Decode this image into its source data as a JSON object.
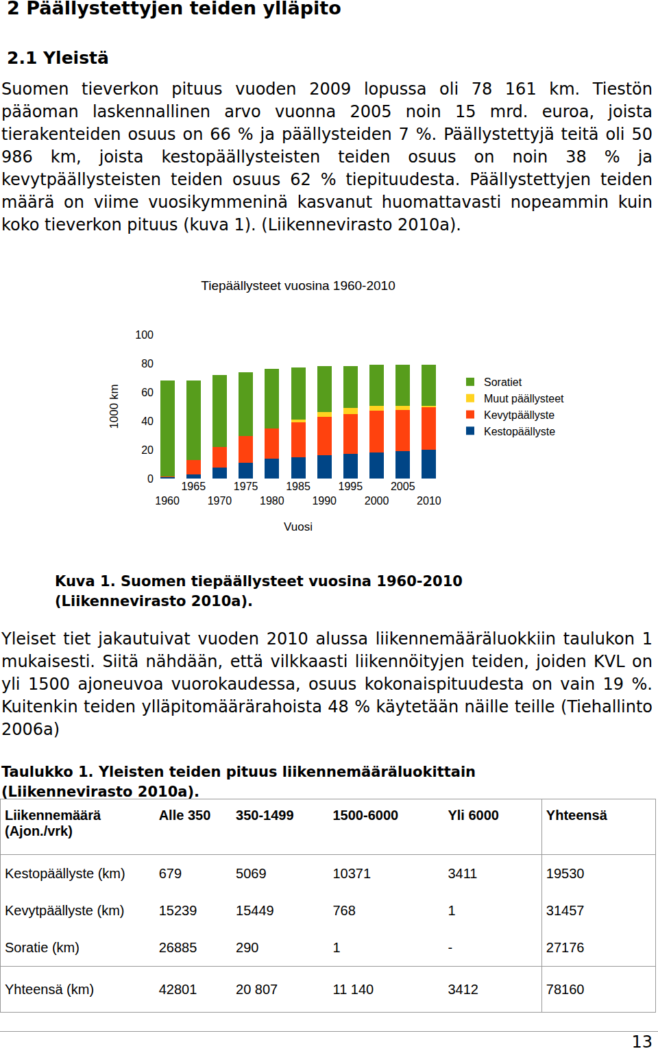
{
  "heading": "2 Päällystettyjen teiden ylläpito",
  "subheading": "2.1 Yleistä",
  "paragraph_1": "Suomen tieverkon pituus vuoden 2009 lopussa oli 78 161 km. Tiestön pääoman laskennallinen arvo vuonna 2005 noin 15 mrd. euroa, joista tierakenteiden osuus on 66 % ja päällysteiden 7 %. Päällystettyjä teitä oli 50 986 km, joista kestopäällysteisten teiden osuus on noin 38 % ja kevytpäällysteisten teiden osuus 62 % tiepituudesta. Päällystettyjen teiden määrä on viime vuosikymmeninä kasvanut huomattavasti nopeammin kuin koko tieverkon pituus (kuva 1). (Liikennevirasto 2010a).",
  "chart_data": {
    "type": "bar",
    "title": "Tiepäällysteet vuosina 1960-2010",
    "x_label": "Vuosi",
    "y_label": "1000 km",
    "stacked": true,
    "grid": false,
    "legend": "right",
    "categories": [
      "1960",
      "1965",
      "1970",
      "1975",
      "1980",
      "1985",
      "1990",
      "1995",
      "2000",
      "2005",
      "2010"
    ],
    "ylim": [
      0,
      100
    ],
    "yticks": [
      0,
      20,
      40,
      60,
      80,
      100
    ],
    "series": [
      {
        "name": "Kestopäällyste",
        "color": "#004586",
        "values": [
          1,
          3,
          7.5,
          11,
          14,
          15,
          16,
          17,
          18,
          19,
          20
        ]
      },
      {
        "name": "Kevytpäällyste",
        "color": "#ff420e",
        "values": [
          0.3,
          10,
          14.5,
          18.5,
          21,
          24,
          27,
          28,
          29,
          28.5,
          29.5
        ]
      },
      {
        "name": "Muut päällysteet",
        "color": "#ffd320",
        "values": [
          0,
          0,
          0,
          0,
          0,
          2,
          3,
          4,
          3.5,
          3,
          1
        ]
      },
      {
        "name": "Soratiet",
        "color": "#579d1c",
        "values": [
          67,
          55,
          50,
          44.5,
          41,
          36,
          32,
          29,
          28.5,
          28.5,
          28.5
        ]
      }
    ]
  },
  "figure_caption": [
    "Kuva 1. Suomen tiepäällysteet vuosina 1960-2010",
    "(Liikennevirasto 2010a)."
  ],
  "paragraph_2": "Yleiset tiet jakautuivat vuoden 2010 alussa liikennemääräluokkiin taulukon 1 mukaisesti. Siitä nähdään, että vilkkaasti liikennöityjen teiden, joiden KVL on yli 1500 ajoneuvoa vuorokaudessa, osuus kokonaispituudesta on vain 19 %. Kuitenkin teiden ylläpitomäärärahoista 48 % käytetään näille teille (Tiehallinto 2006a)",
  "table_caption": [
    "Taulukko 1. Yleisten teiden pituus liikennemääräluokittain",
    "(Liikennevirasto 2010a)."
  ],
  "table": {
    "header": [
      "Liikennemäärä (Ajon./vrk)",
      "Alle 350",
      "350-1499",
      "1500-6000",
      "Yli 6000",
      "Yhteensä"
    ],
    "rows": [
      [
        "Kestopäällyste (km)",
        "679",
        "5069",
        "10371",
        "3411",
        "19530"
      ],
      [
        "Kevytpäällyste (km)",
        "15239",
        "15449",
        "768",
        "1",
        "31457"
      ],
      [
        "Soratie (km)",
        "26885",
        "290",
        "1",
        "-",
        "27176"
      ],
      [
        "Yhteensä (km)",
        "42801",
        "20 807",
        "11 140",
        "3412",
        "78160"
      ]
    ]
  },
  "page_number": "13"
}
